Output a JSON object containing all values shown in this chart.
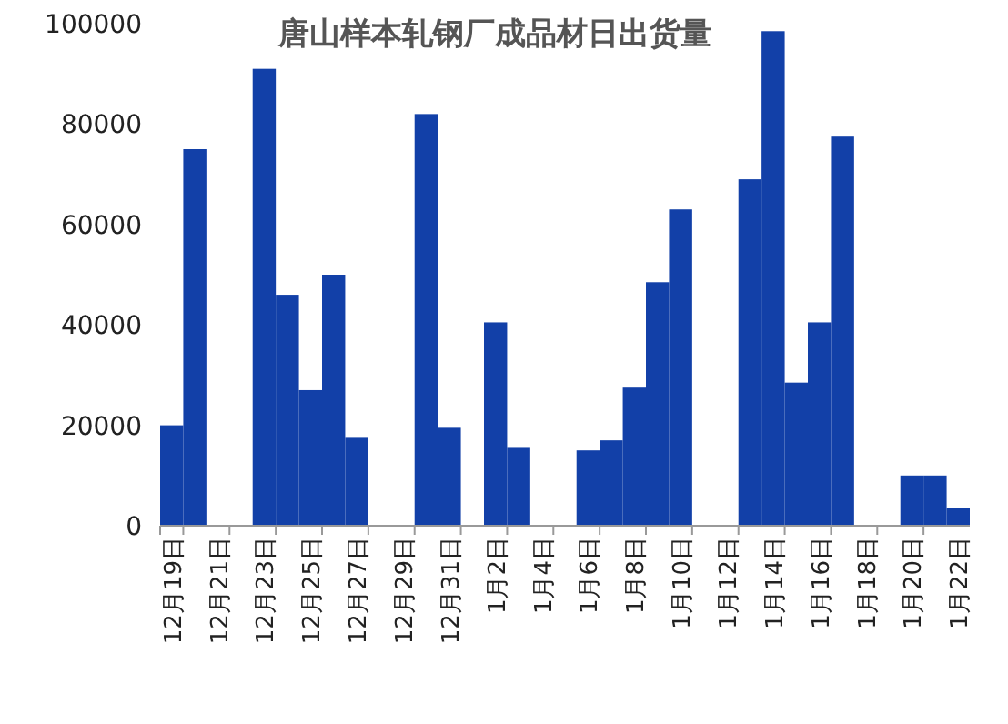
{
  "chart_data": {
    "type": "bar",
    "title": "唐山样本轧钢厂成品材日出货量",
    "categories": [
      "12月19日",
      null,
      "12月21日",
      null,
      "12月23日",
      null,
      "12月25日",
      null,
      "12月27日",
      null,
      "12月29日",
      null,
      "12月31日",
      null,
      "1月2日",
      null,
      "1月4日",
      null,
      "1月6日",
      null,
      "1月8日",
      null,
      "1月10日",
      null,
      "1月12日",
      null,
      "1月14日",
      null,
      "1月16日",
      null,
      "1月18日",
      null,
      "1月20日",
      null,
      "1月22日"
    ],
    "values": [
      20000,
      75000,
      null,
      null,
      91000,
      46000,
      27000,
      50000,
      17500,
      null,
      null,
      82000,
      19500,
      null,
      40500,
      15500,
      null,
      null,
      15000,
      17000,
      27500,
      48500,
      63000,
      null,
      null,
      69000,
      98500,
      28500,
      40500,
      77500,
      null,
      null,
      10000,
      10000,
      3500
    ],
    "color": "#1240a8",
    "ylim": [
      0,
      100000
    ],
    "yticks": [
      0,
      20000,
      40000,
      60000,
      80000,
      100000
    ],
    "grid": false
  }
}
